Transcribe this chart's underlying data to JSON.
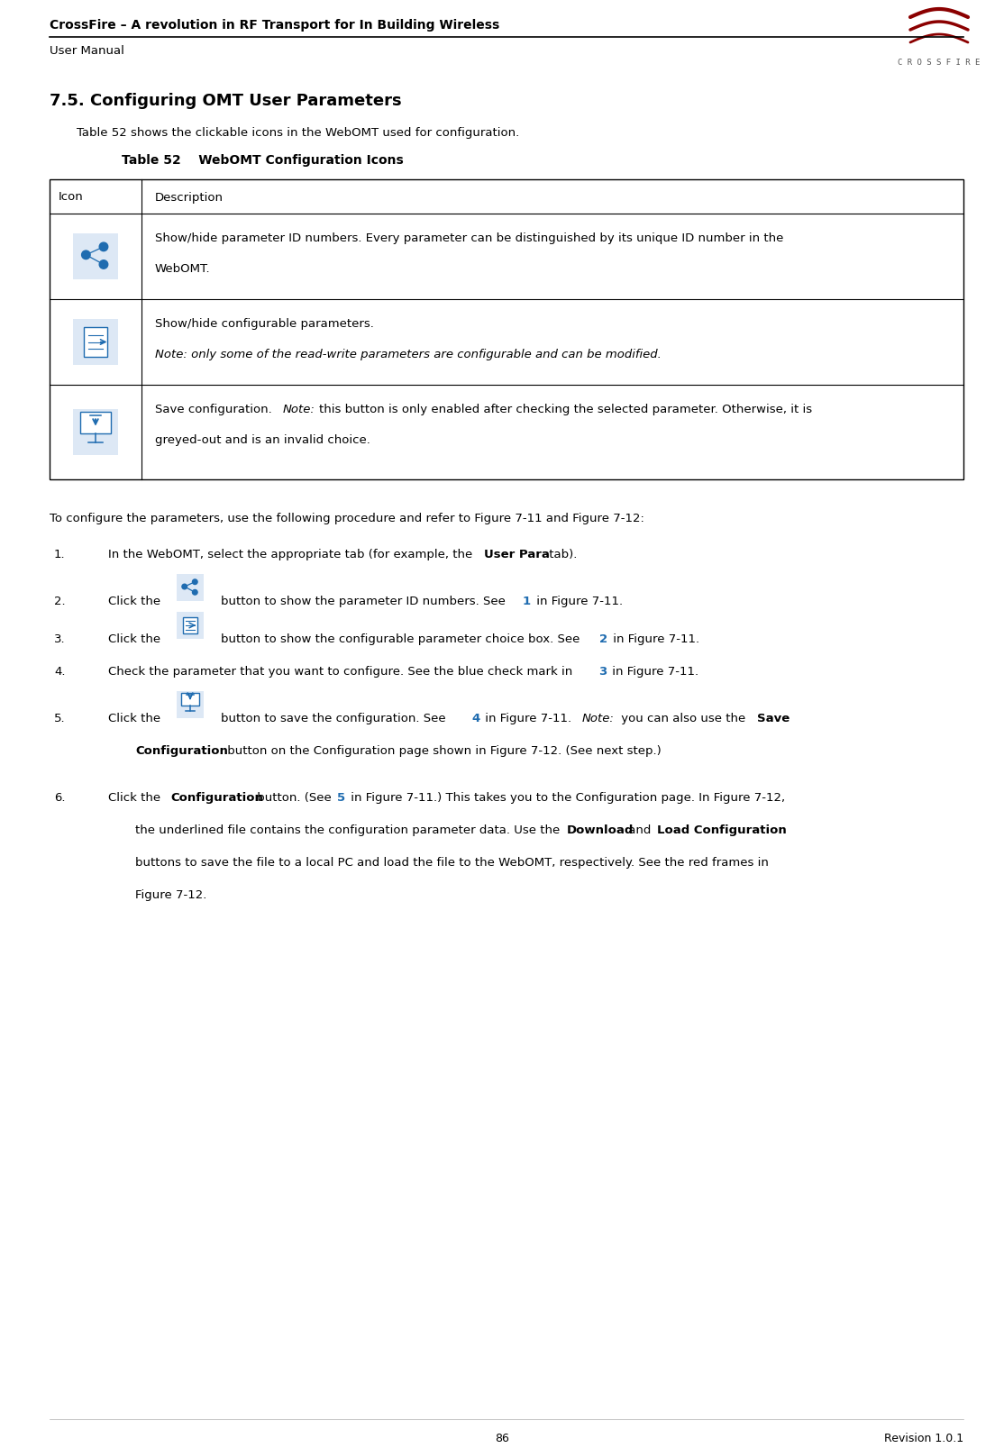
{
  "page_width": 11.14,
  "page_height": 16.08,
  "bg_color": "#ffffff",
  "header_title": "CrossFire – A revolution in RF Transport for In Building Wireless",
  "header_subtitle": "User Manual",
  "header_right": "C R O S S F I R E",
  "section_title": "7.5. Configuring OMT User Parameters",
  "intro_text": "Table 52 shows the clickable icons in the WebOMT used for configuration.",
  "table_caption": "Table 52    WebOMT Configuration Icons",
  "table_col1": "Icon",
  "table_col2": "Description",
  "body_intro": "To configure the parameters, use the following procedure and refer to Figure 7-11 and Figure 7-12:",
  "footer_page": "86",
  "footer_right": "Revision 1.0.1",
  "accent_color": "#8B0000",
  "blue_color": "#1F6CB0",
  "text_color": "#000000",
  "icon_bg": "#dde8f5",
  "table_border": "#000000"
}
